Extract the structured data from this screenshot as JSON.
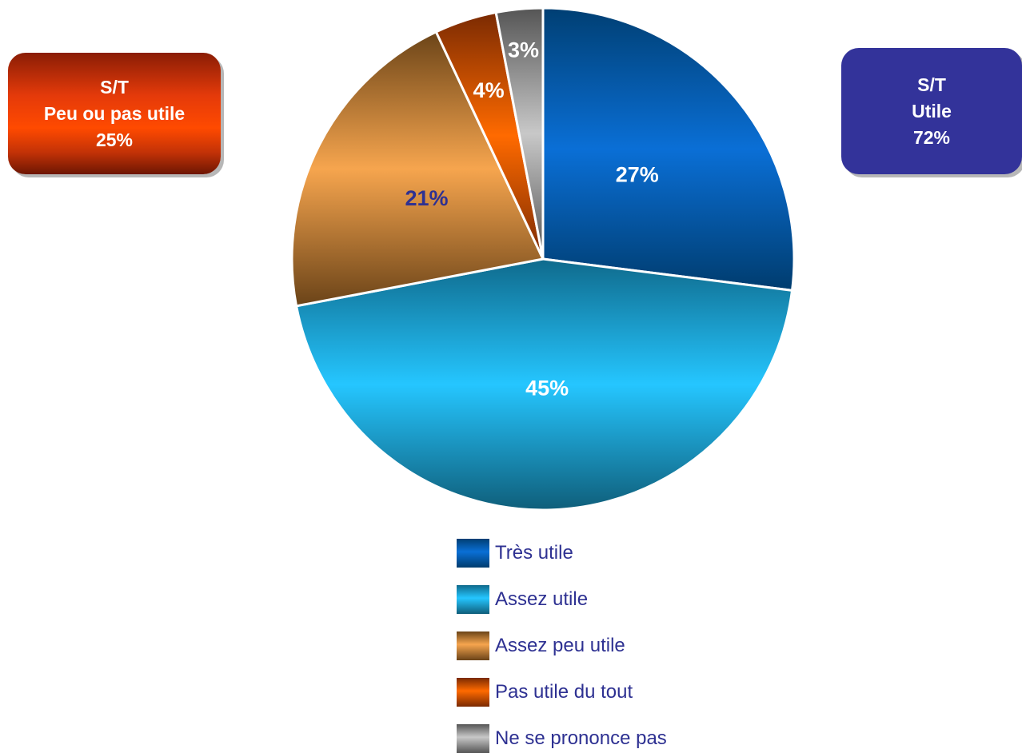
{
  "subtotals": {
    "left": {
      "line1": "S/T",
      "line2": "Peu ou pas utile",
      "value": "25%"
    },
    "right": {
      "line1": "S/T",
      "line2": "Utile",
      "value": "72%"
    }
  },
  "colors": {
    "left_box": "#e43a0a",
    "right_box": "#33339a",
    "label_text_light": "#ffffff",
    "label_text_dark": "#2e3192",
    "legend_text": "#2e3192"
  },
  "chart_data": {
    "type": "pie",
    "title": "",
    "slices": [
      {
        "name": "Très utile",
        "value": 27,
        "label": "27%",
        "colors": [
          "#003f73",
          "#0a6fd6",
          "#003c6e"
        ]
      },
      {
        "name": "Assez utile",
        "value": 45,
        "label": "45%",
        "colors": [
          "#0f6a8c",
          "#25c6ff",
          "#0f5e7a"
        ]
      },
      {
        "name": "Assez peu utile",
        "value": 21,
        "label": "21%",
        "colors": [
          "#6b4418",
          "#f6a54e",
          "#6a4318"
        ]
      },
      {
        "name": "Pas utile du tout",
        "value": 4,
        "label": "4%",
        "colors": [
          "#7a2a02",
          "#ff6a00",
          "#7a2a02"
        ]
      },
      {
        "name": "Ne se prononce pas",
        "value": 3,
        "label": "3%",
        "colors": [
          "#555555",
          "#c8c8c8",
          "#555555"
        ]
      }
    ],
    "legend_position": "bottom"
  }
}
